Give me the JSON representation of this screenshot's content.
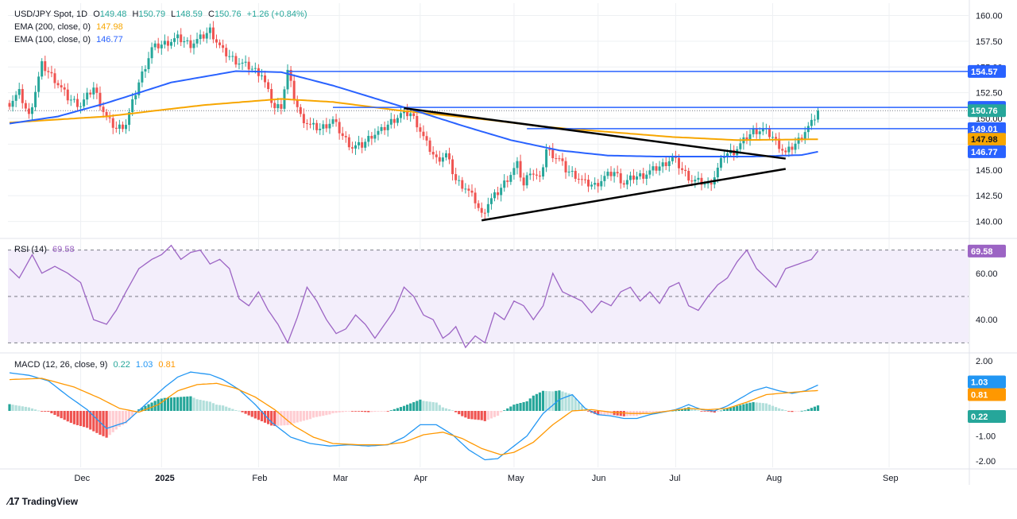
{
  "legend": {
    "symbol": "USD/JPY Spot, 1D",
    "ohlc": {
      "O": "149.48",
      "H": "150.79",
      "L": "148.59",
      "C": "150.76",
      "change": "+1.26 (+0.84%)"
    },
    "ema200": {
      "label": "EMA (200, close, 0)",
      "value": "147.98"
    },
    "ema100": {
      "label": "EMA (100, close, 0)",
      "value": "146.77"
    },
    "rsi": {
      "label": "RSI (14)",
      "value": "69.58"
    },
    "macd": {
      "label": "MACD (12, 26, close, 9)",
      "hist": "0.22",
      "macd": "1.03",
      "signal": "0.81"
    }
  },
  "colors": {
    "up": "#26a69a",
    "down": "#ef5350",
    "ema200": "#f7a600",
    "ema100": "#2962ff",
    "level": "#2962ff",
    "trendline": "#000000",
    "rsi": "#9c64c4",
    "rsi_band": "#f3eefb",
    "macd": "#2196f3",
    "signal": "#ff9800",
    "axis_text": "#131722",
    "grid": "#eef0f3"
  },
  "footer": {
    "brand": "TradingView"
  },
  "chart_data": [
    {
      "type": "candlestick",
      "title": "USD/JPY Spot, 1D",
      "ylim": [
        138.5,
        161.2
      ],
      "y_ticks": [
        "160.00",
        "157.50",
        "155.00",
        "152.50",
        "150.00",
        "147.50",
        "145.00",
        "142.50",
        "140.00"
      ],
      "x_ticks": [
        "Dec",
        "2025",
        "Feb",
        "Mar",
        "Apr",
        "May",
        "Jun",
        "Jul",
        "Aug",
        "Sep"
      ],
      "price_path": [
        [
          0,
          151.5
        ],
        [
          3,
          152.5
        ],
        [
          6,
          150.2
        ],
        [
          10,
          155.2
        ],
        [
          14,
          153.8
        ],
        [
          18,
          152.0
        ],
        [
          22,
          151.3
        ],
        [
          26,
          153.0
        ],
        [
          30,
          150.0
        ],
        [
          33,
          149.0
        ],
        [
          36,
          149.5
        ],
        [
          40,
          153.5
        ],
        [
          44,
          156.8
        ],
        [
          48,
          157.3
        ],
        [
          52,
          157.8
        ],
        [
          56,
          157.2
        ],
        [
          60,
          158.0
        ],
        [
          62,
          158.6
        ],
        [
          64,
          157.5
        ],
        [
          66,
          156.5
        ],
        [
          70,
          155.6
        ],
        [
          74,
          155.0
        ],
        [
          78,
          154.3
        ],
        [
          80,
          152.5
        ],
        [
          82,
          151.0
        ],
        [
          84,
          151.3
        ],
        [
          86,
          154.6
        ],
        [
          88,
          152.0
        ],
        [
          90,
          150.2
        ],
        [
          93,
          149.3
        ],
        [
          96,
          149.0
        ],
        [
          100,
          149.8
        ],
        [
          103,
          148.3
        ],
        [
          106,
          147.2
        ],
        [
          109,
          147.4
        ],
        [
          112,
          148.4
        ],
        [
          115,
          148.8
        ],
        [
          118,
          149.7
        ],
        [
          121,
          150.4
        ],
        [
          124,
          150.5
        ],
        [
          126,
          149.5
        ],
        [
          129,
          147.5
        ],
        [
          132,
          146.0
        ],
        [
          135,
          146.5
        ],
        [
          138,
          144.0
        ],
        [
          141,
          143.3
        ],
        [
          144,
          142.0
        ],
        [
          146,
          140.6
        ],
        [
          148,
          141.8
        ],
        [
          151,
          142.8
        ],
        [
          154,
          144.2
        ],
        [
          157,
          145.5
        ],
        [
          159,
          143.5
        ],
        [
          161,
          145.0
        ],
        [
          164,
          144.0
        ],
        [
          166,
          147.0
        ],
        [
          168,
          146.5
        ],
        [
          170,
          146.0
        ],
        [
          172,
          145.0
        ],
        [
          175,
          144.5
        ],
        [
          178,
          143.7
        ],
        [
          181,
          143.5
        ],
        [
          184,
          144.3
        ],
        [
          187,
          144.8
        ],
        [
          190,
          143.7
        ],
        [
          193,
          144.3
        ],
        [
          196,
          144.5
        ],
        [
          199,
          145.0
        ],
        [
          202,
          145.5
        ],
        [
          205,
          146.2
        ],
        [
          208,
          145.0
        ],
        [
          211,
          144.0
        ],
        [
          214,
          143.8
        ],
        [
          216,
          143.5
        ],
        [
          218,
          144.4
        ],
        [
          221,
          146.5
        ],
        [
          224,
          146.8
        ],
        [
          227,
          147.8
        ],
        [
          230,
          148.8
        ],
        [
          233,
          148.9
        ],
        [
          236,
          148.2
        ],
        [
          238,
          147.4
        ],
        [
          240,
          146.6
        ],
        [
          242,
          147.2
        ],
        [
          244,
          147.9
        ],
        [
          246,
          148.8
        ],
        [
          248,
          149.5
        ],
        [
          250,
          150.76
        ]
      ],
      "ema200": [
        [
          0,
          149.6
        ],
        [
          30,
          150.2
        ],
        [
          60,
          151.3
        ],
        [
          84,
          151.9
        ],
        [
          100,
          151.6
        ],
        [
          120,
          150.8
        ],
        [
          135,
          150.3
        ],
        [
          150,
          149.8
        ],
        [
          165,
          149.2
        ],
        [
          185,
          148.7
        ],
        [
          205,
          148.2
        ],
        [
          225,
          147.9
        ],
        [
          250,
          147.98
        ]
      ],
      "ema100": [
        [
          0,
          149.5
        ],
        [
          15,
          150.2
        ],
        [
          30,
          151.5
        ],
        [
          50,
          153.5
        ],
        [
          70,
          154.6
        ],
        [
          84,
          154.5
        ],
        [
          100,
          153.2
        ],
        [
          125,
          150.8
        ],
        [
          140,
          149.3
        ],
        [
          155,
          147.9
        ],
        [
          170,
          146.9
        ],
        [
          185,
          146.4
        ],
        [
          200,
          146.3
        ],
        [
          215,
          146.3
        ],
        [
          230,
          146.3
        ],
        [
          245,
          146.45
        ],
        [
          250,
          146.77
        ]
      ],
      "levels": [
        {
          "price": 154.57,
          "label": "154.57",
          "x_start": 86
        },
        {
          "price": 151.08,
          "label": "151.08",
          "x_start": 100
        },
        {
          "price": 149.01,
          "label": "149.01",
          "x_start": 160
        }
      ],
      "last_price": {
        "price": 150.76,
        "label": "150.76"
      },
      "ema200_last": {
        "price": 147.98,
        "label": "147.98"
      },
      "ema100_last": {
        "price": 146.77,
        "label": "146.77"
      },
      "trendlines": [
        {
          "from": [
            122,
            151.0
          ],
          "to": [
            240,
            146.1
          ]
        },
        {
          "from": [
            146,
            140.1
          ],
          "to": [
            240,
            145.1
          ]
        }
      ],
      "bar_count": 251
    },
    {
      "type": "line",
      "title": "RSI (14)",
      "ylim": [
        26,
        74
      ],
      "y_ticks": [
        "60.00",
        "40.00"
      ],
      "bands": [
        30,
        50,
        70
      ],
      "last": {
        "value": 69.58,
        "label": "69.58"
      },
      "values": [
        [
          0,
          62
        ],
        [
          3,
          58
        ],
        [
          7,
          68
        ],
        [
          10,
          60
        ],
        [
          14,
          63
        ],
        [
          18,
          60
        ],
        [
          22,
          56
        ],
        [
          26,
          40
        ],
        [
          30,
          38
        ],
        [
          33,
          44
        ],
        [
          36,
          52
        ],
        [
          40,
          62
        ],
        [
          44,
          66
        ],
        [
          47,
          68
        ],
        [
          50,
          72
        ],
        [
          53,
          66
        ],
        [
          56,
          69
        ],
        [
          59,
          70
        ],
        [
          62,
          64
        ],
        [
          65,
          66
        ],
        [
          68,
          62
        ],
        [
          71,
          49
        ],
        [
          74,
          46
        ],
        [
          77,
          52
        ],
        [
          80,
          44
        ],
        [
          83,
          38
        ],
        [
          86,
          30
        ],
        [
          89,
          41
        ],
        [
          92,
          54
        ],
        [
          95,
          48
        ],
        [
          98,
          40
        ],
        [
          101,
          34
        ],
        [
          104,
          36
        ],
        [
          107,
          42
        ],
        [
          110,
          38
        ],
        [
          113,
          32
        ],
        [
          116,
          38
        ],
        [
          119,
          44
        ],
        [
          122,
          54
        ],
        [
          125,
          50
        ],
        [
          128,
          42
        ],
        [
          131,
          40
        ],
        [
          134,
          32
        ],
        [
          136,
          34
        ],
        [
          138,
          37
        ],
        [
          141,
          28
        ],
        [
          144,
          33
        ],
        [
          147,
          30
        ],
        [
          150,
          43
        ],
        [
          153,
          40
        ],
        [
          156,
          48
        ],
        [
          159,
          46
        ],
        [
          162,
          40
        ],
        [
          165,
          46
        ],
        [
          168,
          60
        ],
        [
          171,
          52
        ],
        [
          174,
          50
        ],
        [
          177,
          48
        ],
        [
          180,
          43
        ],
        [
          183,
          48
        ],
        [
          186,
          46
        ],
        [
          189,
          52
        ],
        [
          192,
          54
        ],
        [
          195,
          48
        ],
        [
          198,
          52
        ],
        [
          201,
          47
        ],
        [
          204,
          54
        ],
        [
          207,
          56
        ],
        [
          210,
          46
        ],
        [
          213,
          44
        ],
        [
          216,
          50
        ],
        [
          219,
          55
        ],
        [
          222,
          58
        ],
        [
          225,
          65
        ],
        [
          228,
          70
        ],
        [
          231,
          62
        ],
        [
          234,
          58
        ],
        [
          237,
          54
        ],
        [
          240,
          62
        ],
        [
          244,
          64
        ],
        [
          248,
          66
        ],
        [
          250,
          69.58
        ]
      ]
    },
    {
      "type": "bar+line",
      "title": "MACD (12, 26, close, 9)",
      "ylim": [
        -2.25,
        2.25
      ],
      "y_ticks": [
        "2.00",
        "1.00",
        "-1.00",
        "-2.00"
      ],
      "last": {
        "macd": 1.03,
        "signal": 0.81,
        "hist": 0.22
      },
      "macd": [
        [
          0,
          1.52
        ],
        [
          6,
          1.42
        ],
        [
          12,
          1.2
        ],
        [
          18,
          0.6
        ],
        [
          24,
          0.05
        ],
        [
          30,
          -0.7
        ],
        [
          36,
          -0.45
        ],
        [
          42,
          0.25
        ],
        [
          48,
          0.95
        ],
        [
          52,
          1.35
        ],
        [
          56,
          1.55
        ],
        [
          62,
          1.45
        ],
        [
          66,
          1.25
        ],
        [
          71,
          0.85
        ],
        [
          76,
          0.25
        ],
        [
          81,
          -0.45
        ],
        [
          87,
          -1.05
        ],
        [
          93,
          -1.3
        ],
        [
          99,
          -1.4
        ],
        [
          105,
          -1.35
        ],
        [
          111,
          -1.4
        ],
        [
          117,
          -1.35
        ],
        [
          122,
          -1.05
        ],
        [
          127,
          -0.55
        ],
        [
          132,
          -0.55
        ],
        [
          137,
          -0.95
        ],
        [
          142,
          -1.55
        ],
        [
          147,
          -1.95
        ],
        [
          151,
          -1.9
        ],
        [
          155,
          -1.5
        ],
        [
          160,
          -1.0
        ],
        [
          165,
          -0.1
        ],
        [
          170,
          0.45
        ],
        [
          174,
          0.65
        ],
        [
          178,
          0.1
        ],
        [
          182,
          -0.15
        ],
        [
          186,
          -0.2
        ],
        [
          190,
          -0.3
        ],
        [
          194,
          -0.3
        ],
        [
          198,
          -0.15
        ],
        [
          202,
          -0.05
        ],
        [
          206,
          0.05
        ],
        [
          210,
          0.25
        ],
        [
          214,
          0.05
        ],
        [
          218,
          0.0
        ],
        [
          222,
          0.2
        ],
        [
          226,
          0.5
        ],
        [
          230,
          0.8
        ],
        [
          234,
          0.95
        ],
        [
          238,
          0.8
        ],
        [
          242,
          0.7
        ],
        [
          246,
          0.8
        ],
        [
          250,
          1.03
        ]
      ],
      "signal": [
        [
          0,
          1.25
        ],
        [
          10,
          1.3
        ],
        [
          20,
          0.95
        ],
        [
          28,
          0.5
        ],
        [
          34,
          0.1
        ],
        [
          40,
          -0.05
        ],
        [
          46,
          0.25
        ],
        [
          52,
          0.8
        ],
        [
          58,
          1.05
        ],
        [
          64,
          1.1
        ],
        [
          70,
          0.9
        ],
        [
          76,
          0.55
        ],
        [
          82,
          0.05
        ],
        [
          88,
          -0.6
        ],
        [
          94,
          -1.05
        ],
        [
          100,
          -1.3
        ],
        [
          108,
          -1.35
        ],
        [
          116,
          -1.35
        ],
        [
          122,
          -1.25
        ],
        [
          128,
          -0.95
        ],
        [
          134,
          -0.85
        ],
        [
          140,
          -1.1
        ],
        [
          146,
          -1.5
        ],
        [
          152,
          -1.75
        ],
        [
          156,
          -1.65
        ],
        [
          162,
          -1.25
        ],
        [
          168,
          -0.55
        ],
        [
          174,
          0.0
        ],
        [
          180,
          0.05
        ],
        [
          186,
          -0.05
        ],
        [
          192,
          -0.1
        ],
        [
          198,
          -0.1
        ],
        [
          204,
          0.0
        ],
        [
          210,
          0.1
        ],
        [
          216,
          0.05
        ],
        [
          222,
          0.1
        ],
        [
          228,
          0.35
        ],
        [
          234,
          0.65
        ],
        [
          240,
          0.72
        ],
        [
          246,
          0.78
        ],
        [
          250,
          0.81
        ]
      ],
      "histogram_x_from": 0
    }
  ]
}
